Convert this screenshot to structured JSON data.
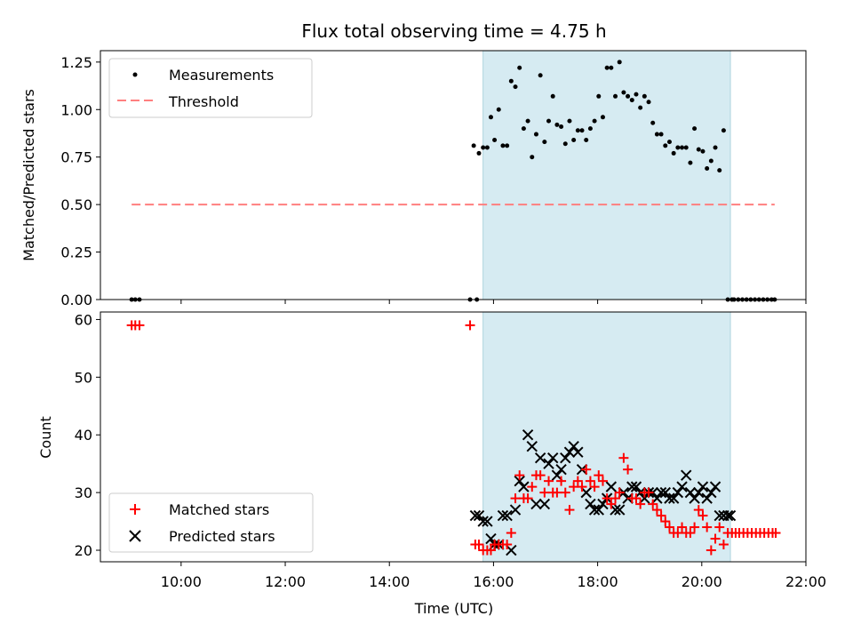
{
  "chart_data": {
    "type": "scatter",
    "title": "Flux total observing time = 4.75 h",
    "xlabel": "Time (UTC)",
    "xlim": [
      8.45,
      22.0
    ],
    "xticks": [
      10,
      12,
      14,
      16,
      18,
      20,
      22
    ],
    "xtick_labels": [
      "10:00",
      "12:00",
      "14:00",
      "16:00",
      "18:00",
      "20:00",
      "22:00"
    ],
    "observing_window": [
      15.8,
      20.55
    ],
    "colors": {
      "measure": "#000000",
      "threshold": "#ff7f7f",
      "matched": "#ff0000",
      "predicted": "#000000",
      "window": "#add8e6"
    },
    "top": {
      "ylabel": "Matched/Predicted stars",
      "ylim": [
        0,
        1.31
      ],
      "yticks": [
        0,
        0.25,
        0.5,
        0.75,
        1.0,
        1.25
      ],
      "ytick_labels": [
        "0.00",
        "0.25",
        "0.50",
        "0.75",
        "1.00",
        "1.25"
      ],
      "legend": [
        "Measurements",
        "Threshold"
      ],
      "threshold": {
        "value": 0.5,
        "x_start": 9.05,
        "x_end": 21.4
      },
      "measurements": {
        "x": [
          9.05,
          9.12,
          9.2,
          15.55,
          15.68,
          15.62,
          15.72,
          15.8,
          15.88,
          15.95,
          16.02,
          16.1,
          16.18,
          16.26,
          16.34,
          16.42,
          16.5,
          16.58,
          16.66,
          16.74,
          16.82,
          16.9,
          16.98,
          17.06,
          17.14,
          17.22,
          17.3,
          17.38,
          17.46,
          17.54,
          17.62,
          17.7,
          17.78,
          17.86,
          17.94,
          18.02,
          18.1,
          18.18,
          18.26,
          18.34,
          18.42,
          18.5,
          18.58,
          18.66,
          18.74,
          18.82,
          18.9,
          18.98,
          19.06,
          19.14,
          19.22,
          19.3,
          19.38,
          19.46,
          19.54,
          19.62,
          19.7,
          19.78,
          19.86,
          19.94,
          20.02,
          20.1,
          20.18,
          20.26,
          20.34,
          20.42,
          20.5,
          20.58,
          20.62,
          20.7,
          20.78,
          20.86,
          20.94,
          21.02,
          21.1,
          21.18,
          21.26,
          21.34,
          21.4
        ],
        "y": [
          0,
          0,
          0,
          0,
          0,
          0.81,
          0.77,
          0.8,
          0.8,
          0.96,
          0.84,
          1.0,
          0.81,
          0.81,
          1.15,
          1.12,
          1.22,
          0.9,
          0.94,
          0.75,
          0.87,
          1.18,
          0.83,
          0.94,
          1.07,
          0.92,
          0.91,
          0.82,
          0.94,
          0.84,
          0.89,
          0.89,
          0.84,
          0.9,
          0.94,
          1.07,
          0.96,
          1.22,
          1.22,
          1.07,
          1.25,
          1.09,
          1.07,
          1.05,
          1.08,
          1.01,
          1.07,
          1.04,
          0.93,
          0.87,
          0.87,
          0.81,
          0.83,
          0.77,
          0.8,
          0.8,
          0.8,
          0.72,
          0.9,
          0.79,
          0.78,
          0.69,
          0.73,
          0.8,
          0.68,
          0.89,
          0,
          0,
          0,
          0,
          0,
          0,
          0,
          0,
          0,
          0,
          0,
          0,
          0
        ]
      }
    },
    "bottom": {
      "ylabel": "Count",
      "ylim": [
        18.0,
        61.3
      ],
      "yticks": [
        20,
        30,
        40,
        50,
        60
      ],
      "ytick_labels": [
        "20",
        "30",
        "40",
        "50",
        "60"
      ],
      "legend": [
        "Matched stars",
        "Predicted stars"
      ],
      "series": [
        {
          "name": "Matched stars",
          "x": [
            9.05,
            9.12,
            9.2,
            15.55,
            15.65,
            15.72,
            15.8,
            15.88,
            15.95,
            16.02,
            16.1,
            16.18,
            16.26,
            16.34,
            16.42,
            16.5,
            16.58,
            16.66,
            16.74,
            16.82,
            16.9,
            16.98,
            17.06,
            17.14,
            17.22,
            17.3,
            17.38,
            17.46,
            17.54,
            17.62,
            17.7,
            17.78,
            17.86,
            17.94,
            18.02,
            18.1,
            18.18,
            18.26,
            18.34,
            18.42,
            18.5,
            18.58,
            18.66,
            18.74,
            18.82,
            18.9,
            18.98,
            19.06,
            19.14,
            19.22,
            19.3,
            19.38,
            19.46,
            19.54,
            19.62,
            19.7,
            19.78,
            19.86,
            19.94,
            20.02,
            20.1,
            20.18,
            20.26,
            20.34,
            20.42,
            20.5,
            20.58,
            20.65,
            20.72,
            20.8,
            20.88,
            20.96,
            21.04,
            21.12,
            21.2,
            21.28,
            21.36,
            21.42
          ],
          "y": [
            59,
            59,
            59,
            59,
            21,
            21,
            20,
            20,
            20,
            21,
            21,
            21,
            21,
            23,
            29,
            33,
            29,
            29,
            31,
            33,
            33,
            30,
            32,
            30,
            30,
            32,
            30,
            27,
            31,
            32,
            31,
            34,
            32,
            31,
            33,
            32,
            29,
            28,
            29,
            30,
            36,
            34,
            29,
            29,
            28,
            30,
            30,
            28,
            27,
            26,
            25,
            24,
            23,
            23,
            24,
            23,
            23,
            24,
            27,
            26,
            24,
            20,
            22,
            24,
            21,
            23,
            23,
            23,
            23,
            23,
            23,
            23,
            23,
            23,
            23,
            23,
            23,
            23
          ]
        },
        {
          "name": "Predicted stars",
          "x": [
            15.65,
            15.72,
            15.8,
            15.88,
            15.95,
            16.02,
            16.1,
            16.18,
            16.26,
            16.34,
            16.42,
            16.5,
            16.58,
            16.66,
            16.74,
            16.82,
            16.9,
            16.98,
            17.06,
            17.14,
            17.22,
            17.3,
            17.38,
            17.46,
            17.54,
            17.62,
            17.7,
            17.78,
            17.86,
            17.94,
            18.02,
            18.1,
            18.18,
            18.26,
            18.34,
            18.42,
            18.5,
            18.58,
            18.66,
            18.74,
            18.82,
            18.9,
            18.98,
            19.06,
            19.14,
            19.22,
            19.3,
            19.38,
            19.46,
            19.54,
            19.62,
            19.7,
            19.78,
            19.86,
            19.94,
            20.02,
            20.1,
            20.18,
            20.26,
            20.34,
            20.42,
            20.5,
            20.55
          ],
          "y": [
            26,
            26,
            25,
            25,
            22,
            21,
            21,
            26,
            26,
            20,
            27,
            32,
            31,
            40,
            38,
            28,
            36,
            28,
            35,
            36,
            33,
            34,
            36,
            37,
            38,
            37,
            34,
            30,
            28,
            27,
            27,
            28,
            29,
            31,
            27,
            27,
            30,
            29,
            31,
            31,
            30,
            29,
            30,
            30,
            29,
            30,
            30,
            29,
            29,
            30,
            31,
            33,
            30,
            29,
            30,
            31,
            29,
            30,
            31,
            26,
            26,
            26,
            26
          ]
        }
      ]
    }
  }
}
